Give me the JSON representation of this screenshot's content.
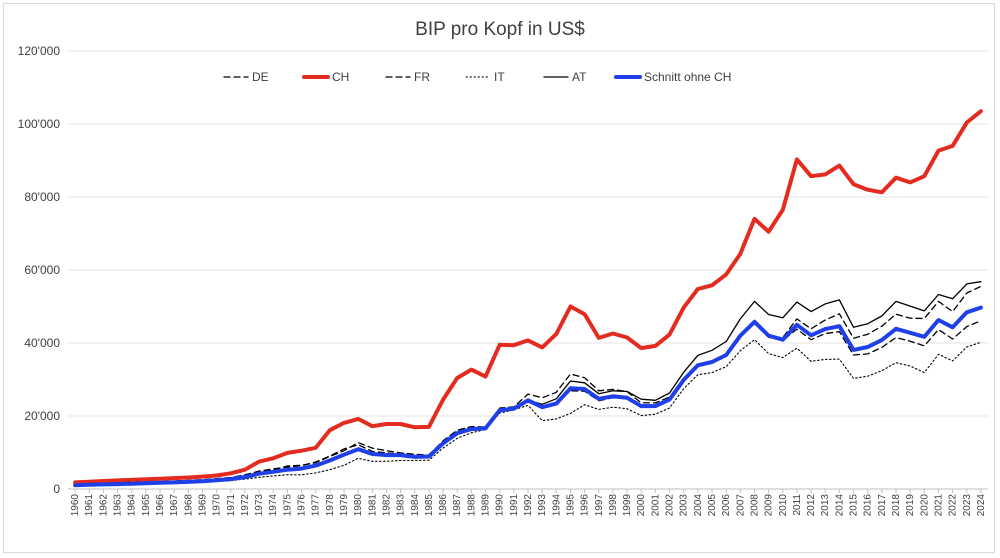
{
  "chart_data": {
    "type": "line",
    "title": "BIP pro Kopf in US$",
    "xlabel": "",
    "ylabel": "",
    "ylim": [
      0,
      120000
    ],
    "yticks": [
      "0",
      "20'000",
      "40'000",
      "60'000",
      "80'000",
      "100'000",
      "120'000"
    ],
    "ytick_values": [
      0,
      20000,
      40000,
      60000,
      80000,
      100000,
      120000
    ],
    "grid": "horizontal",
    "legend_position": "top",
    "x": [
      1960,
      1961,
      1962,
      1963,
      1964,
      1965,
      1966,
      1967,
      1968,
      1969,
      1970,
      1971,
      1972,
      1973,
      1974,
      1975,
      1976,
      1977,
      1978,
      1979,
      1980,
      1981,
      1982,
      1983,
      1984,
      1985,
      1986,
      1987,
      1988,
      1989,
      1990,
      1991,
      1992,
      1993,
      1994,
      1995,
      1996,
      1997,
      1998,
      1999,
      2000,
      2001,
      2002,
      2003,
      2004,
      2005,
      2006,
      2007,
      2008,
      2009,
      2010,
      2011,
      2012,
      2013,
      2014,
      2015,
      2016,
      2017,
      2018,
      2019,
      2020,
      2021,
      2022,
      2023,
      2024
    ],
    "series": [
      {
        "name": "DE",
        "color": "#000000",
        "style": "dashed",
        "width": 1.3,
        "values": [
          1200,
          1350,
          1450,
          1550,
          1700,
          1850,
          1950,
          2000,
          2150,
          2350,
          2700,
          3100,
          3700,
          4900,
          5500,
          6000,
          6400,
          7400,
          9000,
          11000,
          12100,
          10300,
          9900,
          9600,
          9100,
          9300,
          13200,
          16100,
          17100,
          17000,
          22200,
          22500,
          26000,
          25000,
          26500,
          31500,
          30500,
          26900,
          27300,
          26700,
          23600,
          23600,
          25200,
          30300,
          34000,
          34700,
          36300,
          41600,
          45600,
          41600,
          41500,
          46600,
          43900,
          46300,
          48000,
          41300,
          42400,
          44600,
          47900,
          46800,
          46700,
          51400,
          48600,
          53700,
          55500
        ]
      },
      {
        "name": "CH",
        "color": "#e32b1f",
        "style": "solid",
        "width": 4,
        "values": [
          1800,
          2000,
          2200,
          2350,
          2500,
          2650,
          2800,
          3000,
          3150,
          3400,
          3700,
          4300,
          5300,
          7500,
          8400,
          9900,
          10500,
          11300,
          16100,
          18100,
          19200,
          17200,
          17800,
          17800,
          16900,
          17000,
          24500,
          30400,
          32700,
          30800,
          39500,
          39400,
          40700,
          38800,
          42500,
          50000,
          47900,
          41400,
          42600,
          41500,
          38600,
          39200,
          42300,
          49700,
          54800,
          55800,
          58800,
          64400,
          74000,
          70500,
          76500,
          90300,
          85700,
          86200,
          88600,
          83500,
          82000,
          81300,
          85300,
          84000,
          85700,
          92700,
          94000,
          100400,
          103500
        ]
      },
      {
        "name": "FR",
        "color": "#000000",
        "style": "dashed",
        "width": 1.3,
        "values": [
          1350,
          1450,
          1550,
          1700,
          1850,
          1950,
          2050,
          2200,
          2350,
          2550,
          2850,
          3150,
          3900,
          4900,
          5200,
          6300,
          6500,
          7200,
          8900,
          10500,
          12700,
          11200,
          10500,
          9900,
          9500,
          9300,
          13000,
          15700,
          16900,
          16800,
          21800,
          21900,
          23800,
          22600,
          23500,
          26900,
          26800,
          24200,
          25000,
          24700,
          22400,
          22500,
          24300,
          29700,
          33800,
          34900,
          36500,
          41600,
          45400,
          41600,
          40700,
          43800,
          40900,
          42600,
          43100,
          36700,
          37000,
          38800,
          41500,
          40500,
          39200,
          43700,
          41100,
          44500,
          46100
        ]
      },
      {
        "name": "IT",
        "color": "#000000",
        "style": "dotted",
        "width": 1.1,
        "values": [
          800,
          900,
          1000,
          1100,
          1200,
          1300,
          1400,
          1550,
          1650,
          1800,
          2100,
          2300,
          2700,
          3200,
          3600,
          3900,
          3900,
          4400,
          5300,
          6500,
          8400,
          7600,
          7600,
          7800,
          7800,
          7900,
          11200,
          13900,
          15400,
          16300,
          20800,
          21700,
          22900,
          18700,
          19200,
          20700,
          23100,
          21800,
          22400,
          22000,
          20100,
          20500,
          22200,
          27500,
          31300,
          31900,
          33500,
          37900,
          40900,
          37100,
          36000,
          38600,
          35000,
          35500,
          35600,
          30300,
          30900,
          32400,
          34600,
          33700,
          31900,
          36900,
          35100,
          38900,
          40200
        ]
      },
      {
        "name": "AT",
        "color": "#000000",
        "style": "solid",
        "width": 1.3,
        "values": [
          950,
          1050,
          1150,
          1250,
          1350,
          1450,
          1600,
          1700,
          1800,
          1950,
          2100,
          2350,
          3000,
          4000,
          4700,
          5300,
          5600,
          6600,
          8000,
          9500,
          10900,
          9600,
          9500,
          9500,
          9000,
          9200,
          12800,
          15500,
          16500,
          16600,
          21700,
          22300,
          24300,
          23200,
          24700,
          29600,
          29100,
          26100,
          26900,
          26700,
          24600,
          24300,
          26300,
          32000,
          36600,
          38000,
          40400,
          46600,
          51400,
          47800,
          46900,
          51200,
          48600,
          50700,
          51800,
          44300,
          45300,
          47400,
          51400,
          50100,
          48800,
          53300,
          52100,
          56200,
          56800
        ]
      },
      {
        "name": "Schnitt ohne CH",
        "color": "#1f3fe8",
        "style": "solid",
        "width": 4,
        "values": [
          1050,
          1150,
          1250,
          1350,
          1450,
          1550,
          1700,
          1800,
          1950,
          2100,
          2400,
          2700,
          3300,
          4200,
          4700,
          5300,
          5600,
          6400,
          7800,
          9400,
          10900,
          9600,
          9300,
          9300,
          8800,
          8900,
          12500,
          15300,
          16400,
          16600,
          21600,
          22000,
          24300,
          22400,
          23400,
          27600,
          27400,
          24700,
          25400,
          25000,
          22700,
          22700,
          24500,
          29900,
          33900,
          34800,
          36700,
          42000,
          45800,
          42000,
          40900,
          45000,
          42100,
          43800,
          44600,
          38100,
          38900,
          40800,
          43900,
          42800,
          41700,
          46300,
          44300,
          48400,
          49700
        ]
      }
    ]
  }
}
